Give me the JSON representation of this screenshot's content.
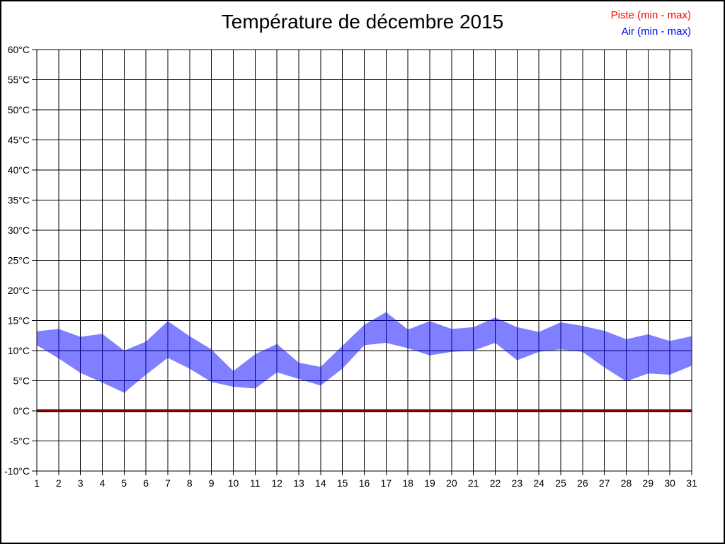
{
  "title": "Température de décembre 2015",
  "legend": [
    {
      "label": "Piste (min - max)",
      "color": "#ff0000"
    },
    {
      "label": "Air (min - max)",
      "color": "#0000ff"
    }
  ],
  "chart_data": {
    "type": "area",
    "title": "Température de décembre 2015",
    "xlabel": "",
    "ylabel": "",
    "x": [
      1,
      2,
      3,
      4,
      5,
      6,
      7,
      8,
      9,
      10,
      11,
      12,
      13,
      14,
      15,
      16,
      17,
      18,
      19,
      20,
      21,
      22,
      23,
      24,
      25,
      26,
      27,
      28,
      29,
      30,
      31
    ],
    "xtick_labels": [
      "1",
      "2",
      "3",
      "4",
      "5",
      "6",
      "7",
      "8",
      "9",
      "10",
      "11",
      "12",
      "13",
      "14",
      "15",
      "16",
      "17",
      "18",
      "19",
      "20",
      "21",
      "22",
      "23",
      "24",
      "25",
      "26",
      "27",
      "28",
      "29",
      "30",
      "31"
    ],
    "ylim": [
      -10,
      60
    ],
    "ytick_step": 5,
    "ytick_labels": [
      "60°C",
      "55°C",
      "50°C",
      "45°C",
      "40°C",
      "35°C",
      "30°C",
      "25°C",
      "20°C",
      "15°C",
      "10°C",
      "5°C",
      "0°C",
      "-5°C",
      "-10°C"
    ],
    "ytick_values": [
      60,
      55,
      50,
      45,
      40,
      35,
      30,
      25,
      20,
      15,
      10,
      5,
      0,
      -5,
      -10
    ],
    "grid": true,
    "legend_position": "top-right",
    "series": [
      {
        "name": "Piste (min - max)",
        "color": "#ff0000",
        "style": "flat-line",
        "flat_value": 0
      },
      {
        "name": "Air (min - max)",
        "color": "#0000ff",
        "style": "band",
        "min": [
          10.9,
          8.7,
          6.3,
          4.7,
          3.0,
          6.0,
          8.8,
          7.0,
          4.8,
          4.0,
          3.7,
          6.4,
          5.3,
          4.2,
          7.0,
          10.9,
          11.3,
          10.4,
          9.2,
          9.8,
          10.0,
          11.3,
          8.4,
          9.8,
          10.2,
          9.8,
          7.2,
          4.9,
          6.2,
          6.0,
          7.5
        ],
        "max": [
          13.2,
          13.6,
          12.3,
          12.8,
          10.0,
          11.5,
          14.9,
          12.4,
          10.2,
          6.6,
          9.4,
          11.1,
          8.0,
          7.3,
          10.8,
          14.3,
          16.4,
          13.5,
          14.9,
          13.6,
          13.9,
          15.5,
          13.9,
          13.1,
          14.7,
          14.1,
          13.3,
          11.9,
          12.7,
          11.6,
          12.4
        ]
      }
    ]
  }
}
